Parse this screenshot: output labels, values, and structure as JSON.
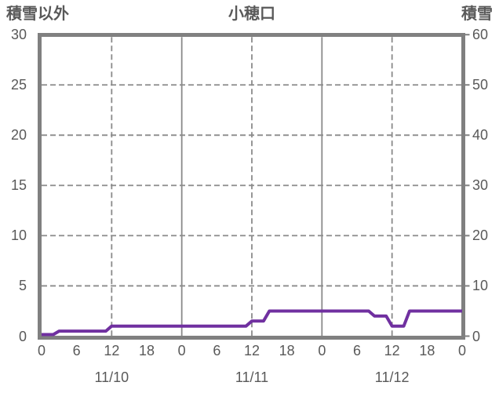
{
  "header": {
    "left_axis_title": "積雪以外",
    "chart_title": "小穂口",
    "right_axis_title": "積雪"
  },
  "chart_data": {
    "type": "line",
    "title": "小穂口",
    "left_axis": {
      "title": "積雪以外",
      "ticks": [
        "30",
        "25",
        "20",
        "15",
        "10",
        "5",
        "0"
      ],
      "tick_values": [
        30,
        25,
        20,
        15,
        10,
        5,
        0
      ],
      "range": [
        0,
        30
      ]
    },
    "right_axis": {
      "title": "積雪",
      "ticks": [
        "60",
        "50",
        "40",
        "30",
        "20",
        "10",
        "0"
      ],
      "tick_values": [
        60,
        50,
        40,
        30,
        20,
        10,
        0
      ],
      "range": [
        0,
        60
      ]
    },
    "x_axis": {
      "hours_span": 72,
      "tick_hours": [
        0,
        6,
        12,
        18,
        24,
        30,
        36,
        42,
        48,
        54,
        60,
        66,
        72
      ],
      "tick_labels": [
        "0",
        "6",
        "12",
        "18",
        "0",
        "6",
        "12",
        "18",
        "0",
        "6",
        "12",
        "18",
        "0"
      ],
      "day_labels": [
        {
          "text": "11/10",
          "hour": 12
        },
        {
          "text": "11/11",
          "hour": 36
        },
        {
          "text": "11/12",
          "hour": 60
        }
      ],
      "noon_gridline_hours": [
        12,
        36,
        60
      ],
      "midnight_gridline_hours": [
        24,
        48
      ]
    },
    "grid": {
      "horizontal_right_values": [
        10,
        20,
        30,
        40,
        50
      ]
    },
    "series": [
      {
        "name": "積雪",
        "axis": "right",
        "color": "#7030A0",
        "interval_hours": 1,
        "values": [
          0,
          0,
          0,
          1,
          1,
          1,
          1,
          1,
          1,
          1,
          1,
          1,
          2,
          2,
          2,
          2,
          2,
          2,
          2,
          2,
          2,
          2,
          2,
          2,
          2,
          2,
          2,
          2,
          2,
          2,
          2,
          2,
          2,
          2,
          2,
          2,
          3,
          3,
          3,
          5,
          5,
          5,
          5,
          5,
          5,
          5,
          5,
          5,
          5,
          5,
          5,
          5,
          5,
          5,
          5,
          5,
          5,
          4,
          4,
          4,
          2,
          2,
          2,
          5,
          5,
          5,
          5,
          5,
          5,
          5,
          5,
          5,
          5
        ]
      }
    ],
    "colors": {
      "frame": "#808080",
      "gridline": "#8a8a8a",
      "text": "#595959",
      "series_purple": "#7030A0",
      "background": "#ffffff"
    }
  }
}
